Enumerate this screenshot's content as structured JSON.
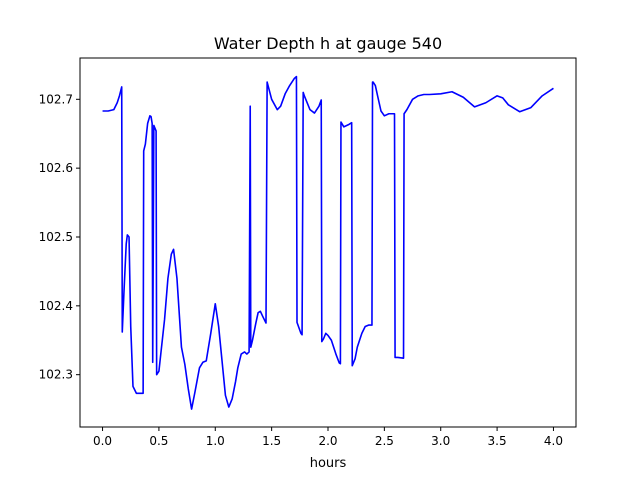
{
  "chart_data": {
    "type": "line",
    "title": "Water Depth h at gauge 540",
    "xlabel": "hours",
    "ylabel": "",
    "xlim": [
      -0.2,
      4.2
    ],
    "ylim": [
      102.224,
      102.76
    ],
    "xticks": [
      0.0,
      0.5,
      1.0,
      1.5,
      2.0,
      2.5,
      3.0,
      3.5,
      4.0
    ],
    "xtick_labels": [
      "0.0",
      "0.5",
      "1.0",
      "1.5",
      "2.0",
      "2.5",
      "3.0",
      "3.5",
      "4.0"
    ],
    "yticks": [
      102.3,
      102.4,
      102.5,
      102.6,
      102.7
    ],
    "ytick_labels": [
      "102.3",
      "102.4",
      "102.5",
      "102.6",
      "102.7"
    ],
    "grid": false,
    "color": "#0000ff",
    "series": [
      {
        "x": [
          0.0,
          0.05,
          0.1,
          0.13,
          0.15,
          0.17,
          0.175,
          0.19,
          0.21,
          0.22,
          0.235,
          0.25,
          0.27,
          0.3,
          0.33,
          0.36,
          0.365,
          0.38,
          0.4,
          0.42,
          0.43,
          0.44,
          0.445,
          0.455,
          0.475,
          0.48,
          0.5,
          0.52,
          0.55,
          0.58,
          0.61,
          0.63,
          0.66,
          0.7,
          0.73,
          0.76,
          0.79,
          0.82,
          0.86,
          0.89,
          0.92,
          0.96,
          1.0,
          1.03,
          1.06,
          1.09,
          1.12,
          1.15,
          1.18,
          1.2,
          1.23,
          1.26,
          1.28,
          1.3,
          1.31,
          1.315,
          1.33,
          1.36,
          1.38,
          1.4,
          1.42,
          1.45,
          1.46,
          1.465,
          1.5,
          1.55,
          1.58,
          1.62,
          1.66,
          1.7,
          1.72,
          1.725,
          1.76,
          1.77,
          1.78,
          1.79,
          1.84,
          1.88,
          1.92,
          1.94,
          1.945,
          1.96,
          1.98,
          2.0,
          2.03,
          2.07,
          2.1,
          2.11,
          2.115,
          2.14,
          2.18,
          2.21,
          2.215,
          2.22,
          2.24,
          2.26,
          2.3,
          2.33,
          2.36,
          2.39,
          2.395,
          2.4,
          2.42,
          2.44,
          2.47,
          2.5,
          2.54,
          2.59,
          2.595,
          2.62,
          2.67,
          2.675,
          2.7,
          2.75,
          2.8,
          2.85,
          2.9,
          3.0,
          3.1,
          3.2,
          3.3,
          3.4,
          3.5,
          3.55,
          3.6,
          3.7,
          3.8,
          3.9,
          4.0
        ],
        "y": [
          102.683,
          102.683,
          102.685,
          102.695,
          102.705,
          102.718,
          102.362,
          102.42,
          102.49,
          102.503,
          102.5,
          102.37,
          102.283,
          102.273,
          102.273,
          102.273,
          102.625,
          102.635,
          102.665,
          102.676,
          102.675,
          102.665,
          102.318,
          102.662,
          102.654,
          102.3,
          102.305,
          102.335,
          102.38,
          102.44,
          102.475,
          102.482,
          102.44,
          102.34,
          102.315,
          102.28,
          102.25,
          102.275,
          102.31,
          102.318,
          102.32,
          102.36,
          102.403,
          102.37,
          102.32,
          102.27,
          102.253,
          102.265,
          102.29,
          102.31,
          102.33,
          102.333,
          102.33,
          102.333,
          102.69,
          102.34,
          102.35,
          102.375,
          102.39,
          102.392,
          102.385,
          102.375,
          102.725,
          102.722,
          102.7,
          102.685,
          102.69,
          102.708,
          102.72,
          102.73,
          102.733,
          102.376,
          102.36,
          102.358,
          102.71,
          102.705,
          102.685,
          102.68,
          102.69,
          102.699,
          102.348,
          102.352,
          102.36,
          102.357,
          102.35,
          102.33,
          102.317,
          102.316,
          102.667,
          102.66,
          102.663,
          102.666,
          102.313,
          102.315,
          102.323,
          102.34,
          102.36,
          102.37,
          102.372,
          102.372,
          102.725,
          102.725,
          102.72,
          102.705,
          102.683,
          102.676,
          102.679,
          102.679,
          102.325,
          102.325,
          102.324,
          102.679,
          102.685,
          102.7,
          102.705,
          102.707,
          102.707,
          102.708,
          102.711,
          102.703,
          102.689,
          102.695,
          102.705,
          102.702,
          102.692,
          102.682,
          102.688,
          102.705,
          102.716
        ]
      }
    ]
  }
}
